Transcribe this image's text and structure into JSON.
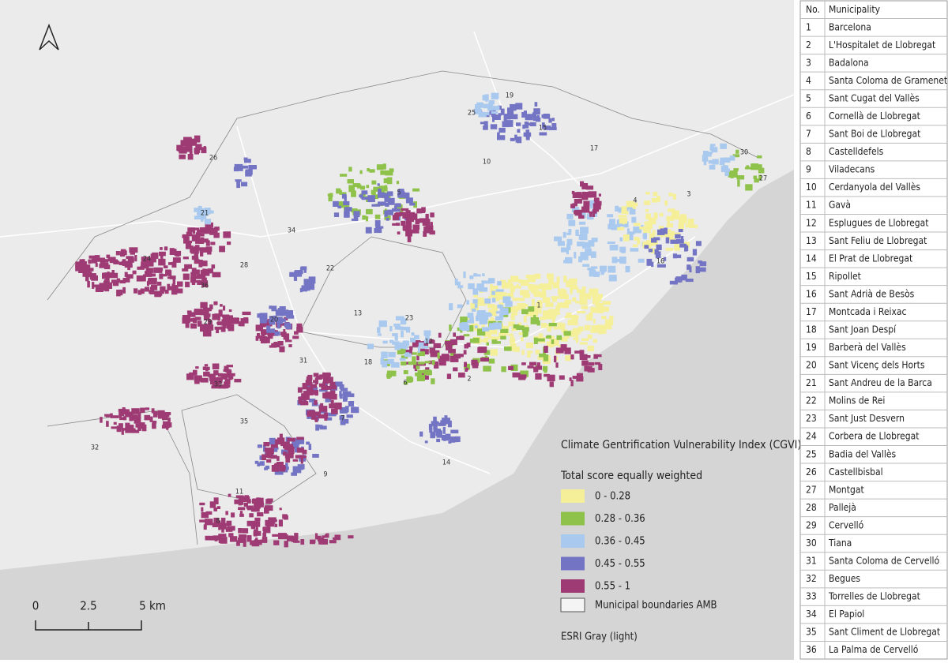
{
  "legend": {
    "title": "Climate Gentrification Vulnerability Index (CGVI)",
    "subtitle": "Total score equally weighted",
    "items": [
      {
        "label": "0 - 0.28",
        "color": "#f4ef98"
      },
      {
        "label": "0.28 - 0.36",
        "color": "#8fc24a"
      },
      {
        "label": "0.36 - 0.45",
        "color": "#a9c9ef"
      },
      {
        "label": "0.45 - 0.55",
        "color": "#7474c4"
      },
      {
        "label": "0.55 - 1",
        "color": "#9e3a74"
      }
    ],
    "boundary_label": "Municipal boundaries AMB",
    "basemap_label": "ESRI Gray (light)"
  },
  "scale_bar": {
    "labels": [
      "0",
      "2.5",
      "5 km"
    ]
  },
  "table": {
    "header": [
      "No.",
      "Municipality"
    ],
    "rows": [
      [
        "1",
        "Barcelona"
      ],
      [
        "2",
        "L'Hospitalet de Llobregat"
      ],
      [
        "3",
        "Badalona"
      ],
      [
        "4",
        "Santa Coloma de Gramenet"
      ],
      [
        "5",
        "Sant Cugat del Vallès"
      ],
      [
        "6",
        "Cornellà de Llobregat"
      ],
      [
        "7",
        "Sant Boi de Llobregat"
      ],
      [
        "8",
        "Castelldefels"
      ],
      [
        "9",
        "Viladecans"
      ],
      [
        "10",
        "Cerdanyola del Vallès"
      ],
      [
        "11",
        "Gavà"
      ],
      [
        "12",
        "Esplugues de Llobregat"
      ],
      [
        "13",
        "Sant Feliu de Llobregat"
      ],
      [
        "14",
        "El Prat de Llobregat"
      ],
      [
        "15",
        "Ripollet"
      ],
      [
        "16",
        "Sant Adrià de Besòs"
      ],
      [
        "17",
        "Montcada i Reixac"
      ],
      [
        "18",
        "Sant Joan Despí"
      ],
      [
        "19",
        "Barberà del Vallès"
      ],
      [
        "20",
        "Sant Vicenç dels Horts"
      ],
      [
        "21",
        "Sant Andreu de la Barca"
      ],
      [
        "22",
        "Molins de Rei"
      ],
      [
        "23",
        "Sant Just Desvern"
      ],
      [
        "24",
        "Corbera de Llobregat"
      ],
      [
        "25",
        "Badia del Vallès"
      ],
      [
        "26",
        "Castellbisbal"
      ],
      [
        "27",
        "Montgat"
      ],
      [
        "28",
        "Pallejà"
      ],
      [
        "29",
        "Cervelló"
      ],
      [
        "30",
        "Tiana"
      ],
      [
        "31",
        "Santa Coloma de Cervelló"
      ],
      [
        "32",
        "Begues"
      ],
      [
        "33",
        "Torrelles de Llobregat"
      ],
      [
        "34",
        "El Papiol"
      ],
      [
        "35",
        "Sant Climent de Llobregat"
      ],
      [
        "36",
        "La Palma de Cervelló"
      ]
    ]
  }
}
